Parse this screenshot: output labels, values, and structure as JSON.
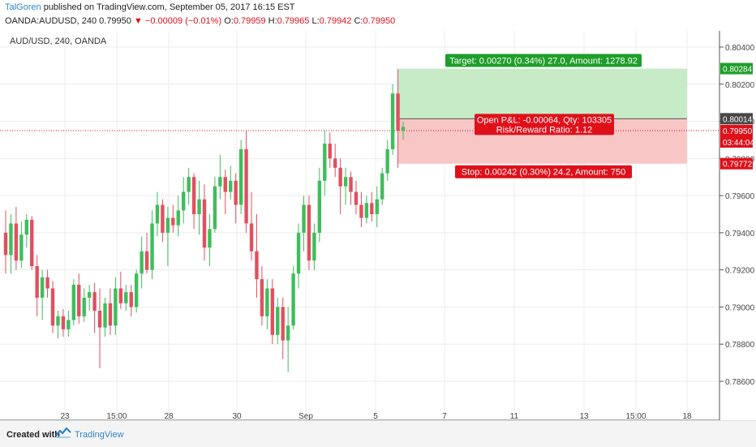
{
  "header": {
    "author": "TalGoren",
    "published": " published on TradingView.com, September 05, 2017 16:15 EST",
    "symbol_line": "OANDA:AUDUSD, 240  0.79950",
    "change": "▼ −0.00009 (−0.01%)",
    "o_label": " O:",
    "o_value": "0.79959",
    "h_label": " H:",
    "h_value": "0.79965",
    "l_label": " L:",
    "l_value": "0.79942",
    "c_label": " C:",
    "c_value": "0.79950"
  },
  "chart_data": {
    "type": "candlestick",
    "title": "AUD/USD, 240, OANDA",
    "ylim": [
      0.7845,
      0.8054
    ],
    "y_ticks": [
      "0.80400",
      "0.80200",
      "0.80000",
      "0.79800",
      "0.79600",
      "0.79400",
      "0.79200",
      "0.79000",
      "0.78800",
      "0.78600"
    ],
    "x_ticks": [
      "23",
      "15:00",
      "28",
      "30",
      "Sep",
      "5",
      "7",
      "11",
      "13",
      "15:00",
      "18"
    ],
    "price_badges": [
      {
        "label": "0.80284",
        "color": "#1e9e2a"
      },
      {
        "label": "0.80014",
        "color": "#474747"
      },
      {
        "label": "0.79950",
        "color": "#e0101b"
      },
      {
        "label": "03:44:04",
        "color": "#e0101b"
      },
      {
        "label": "0.79772",
        "color": "#e0101b"
      }
    ],
    "position": {
      "entry": 0.80014,
      "target": 0.80284,
      "stop": 0.79772,
      "current": 0.7995,
      "target_label": "Target: 0.00270 (0.34%) 27.0, Amount: 1278.92",
      "stop_label": "Stop: 0.00242 (0.30%) 24.2, Amount: 750",
      "pnl_label": "Open P&L: -0.00064, Qty: 103305",
      "rr_label": "Risk/Reward Ratio: 1.12"
    },
    "colors": {
      "up": "#3fbd5c",
      "down": "#e0505f",
      "target_fill": "#c7ebc6",
      "stop_fill": "#f9c6c6"
    },
    "candles": [
      [
        0.794,
        0.7952,
        0.7918,
        0.7928
      ],
      [
        0.7928,
        0.795,
        0.7918,
        0.7945
      ],
      [
        0.7945,
        0.7954,
        0.792,
        0.7925
      ],
      [
        0.7925,
        0.7946,
        0.7921,
        0.7939
      ],
      [
        0.7939,
        0.795,
        0.7932,
        0.7947
      ],
      [
        0.7947,
        0.7949,
        0.792,
        0.7922
      ],
      [
        0.7922,
        0.7928,
        0.7895,
        0.7905
      ],
      [
        0.7905,
        0.792,
        0.7893,
        0.7916
      ],
      [
        0.7916,
        0.792,
        0.7905,
        0.791
      ],
      [
        0.791,
        0.7914,
        0.7886,
        0.789
      ],
      [
        0.789,
        0.7898,
        0.7883,
        0.7895
      ],
      [
        0.7895,
        0.7899,
        0.7884,
        0.7888
      ],
      [
        0.7888,
        0.7898,
        0.7884,
        0.7893
      ],
      [
        0.7893,
        0.7915,
        0.789,
        0.7912
      ],
      [
        0.7912,
        0.7918,
        0.7891,
        0.7895
      ],
      [
        0.7895,
        0.791,
        0.7892,
        0.7905
      ],
      [
        0.7905,
        0.7912,
        0.7898,
        0.7908
      ],
      [
        0.7908,
        0.7913,
        0.7886,
        0.7898
      ],
      [
        0.7898,
        0.791,
        0.7867,
        0.7889
      ],
      [
        0.7889,
        0.7905,
        0.7884,
        0.7902
      ],
      [
        0.7902,
        0.791,
        0.7885,
        0.789
      ],
      [
        0.789,
        0.7916,
        0.7885,
        0.791
      ],
      [
        0.791,
        0.7919,
        0.7899,
        0.7902
      ],
      [
        0.7902,
        0.7912,
        0.7898,
        0.7908
      ],
      [
        0.7908,
        0.7912,
        0.7895,
        0.79
      ],
      [
        0.79,
        0.792,
        0.7897,
        0.7918
      ],
      [
        0.7918,
        0.7938,
        0.791,
        0.793
      ],
      [
        0.793,
        0.794,
        0.7918,
        0.792
      ],
      [
        0.792,
        0.7952,
        0.7915,
        0.7945
      ],
      [
        0.7945,
        0.7962,
        0.7938,
        0.7955
      ],
      [
        0.7955,
        0.7958,
        0.7935,
        0.794
      ],
      [
        0.794,
        0.7954,
        0.7922,
        0.7948
      ],
      [
        0.7948,
        0.7955,
        0.794,
        0.7944
      ],
      [
        0.7944,
        0.796,
        0.7938,
        0.7952
      ],
      [
        0.7952,
        0.797,
        0.7945,
        0.7962
      ],
      [
        0.7962,
        0.7975,
        0.7955,
        0.797
      ],
      [
        0.797,
        0.7972,
        0.7942,
        0.795
      ],
      [
        0.795,
        0.7968,
        0.7939,
        0.7958
      ],
      [
        0.7958,
        0.7966,
        0.7925,
        0.7932
      ],
      [
        0.7932,
        0.795,
        0.7922,
        0.7942
      ],
      [
        0.7942,
        0.797,
        0.794,
        0.7965
      ],
      [
        0.7965,
        0.7982,
        0.7958,
        0.797
      ],
      [
        0.797,
        0.7974,
        0.795,
        0.7962
      ],
      [
        0.7962,
        0.7976,
        0.7958,
        0.7968
      ],
      [
        0.7968,
        0.7972,
        0.7945,
        0.7955
      ],
      [
        0.7955,
        0.799,
        0.795,
        0.7985
      ],
      [
        0.7985,
        0.7995,
        0.794,
        0.7945
      ],
      [
        0.7945,
        0.7962,
        0.7925,
        0.793
      ],
      [
        0.793,
        0.795,
        0.7905,
        0.7915
      ],
      [
        0.7915,
        0.7922,
        0.789,
        0.7895
      ],
      [
        0.7895,
        0.7915,
        0.7888,
        0.791
      ],
      [
        0.791,
        0.7915,
        0.788,
        0.7885
      ],
      [
        0.7885,
        0.7905,
        0.788,
        0.79
      ],
      [
        0.79,
        0.7905,
        0.7872,
        0.7882
      ],
      [
        0.7882,
        0.79,
        0.7865,
        0.789
      ],
      [
        0.789,
        0.7922,
        0.7888,
        0.7918
      ],
      [
        0.7918,
        0.7945,
        0.791,
        0.794
      ],
      [
        0.794,
        0.796,
        0.793,
        0.7955
      ],
      [
        0.7955,
        0.796,
        0.792,
        0.7925
      ],
      [
        0.7925,
        0.7945,
        0.792,
        0.794
      ],
      [
        0.794,
        0.7975,
        0.7935,
        0.7968
      ],
      [
        0.7968,
        0.7995,
        0.796,
        0.7988
      ],
      [
        0.7988,
        0.7994,
        0.7975,
        0.798
      ],
      [
        0.798,
        0.7988,
        0.797,
        0.7975
      ],
      [
        0.7975,
        0.798,
        0.795,
        0.7965
      ],
      [
        0.7965,
        0.7975,
        0.7955,
        0.797
      ],
      [
        0.797,
        0.7973,
        0.7955,
        0.7962
      ],
      [
        0.7962,
        0.7968,
        0.795,
        0.7955
      ],
      [
        0.7955,
        0.7962,
        0.7943,
        0.7948
      ],
      [
        0.7948,
        0.796,
        0.7945,
        0.7956
      ],
      [
        0.7956,
        0.7962,
        0.7946,
        0.795
      ],
      [
        0.795,
        0.7965,
        0.7943,
        0.7958
      ],
      [
        0.7958,
        0.7975,
        0.7955,
        0.7972
      ],
      [
        0.7972,
        0.799,
        0.7968,
        0.7985
      ],
      [
        0.7985,
        0.802,
        0.7982,
        0.8015
      ],
      [
        0.8015,
        0.8028,
        0.7975,
        0.7995
      ],
      [
        0.7995,
        0.8,
        0.799,
        0.7997
      ]
    ]
  },
  "footer": {
    "created_with": "Created with",
    "brand": "TradingView"
  }
}
